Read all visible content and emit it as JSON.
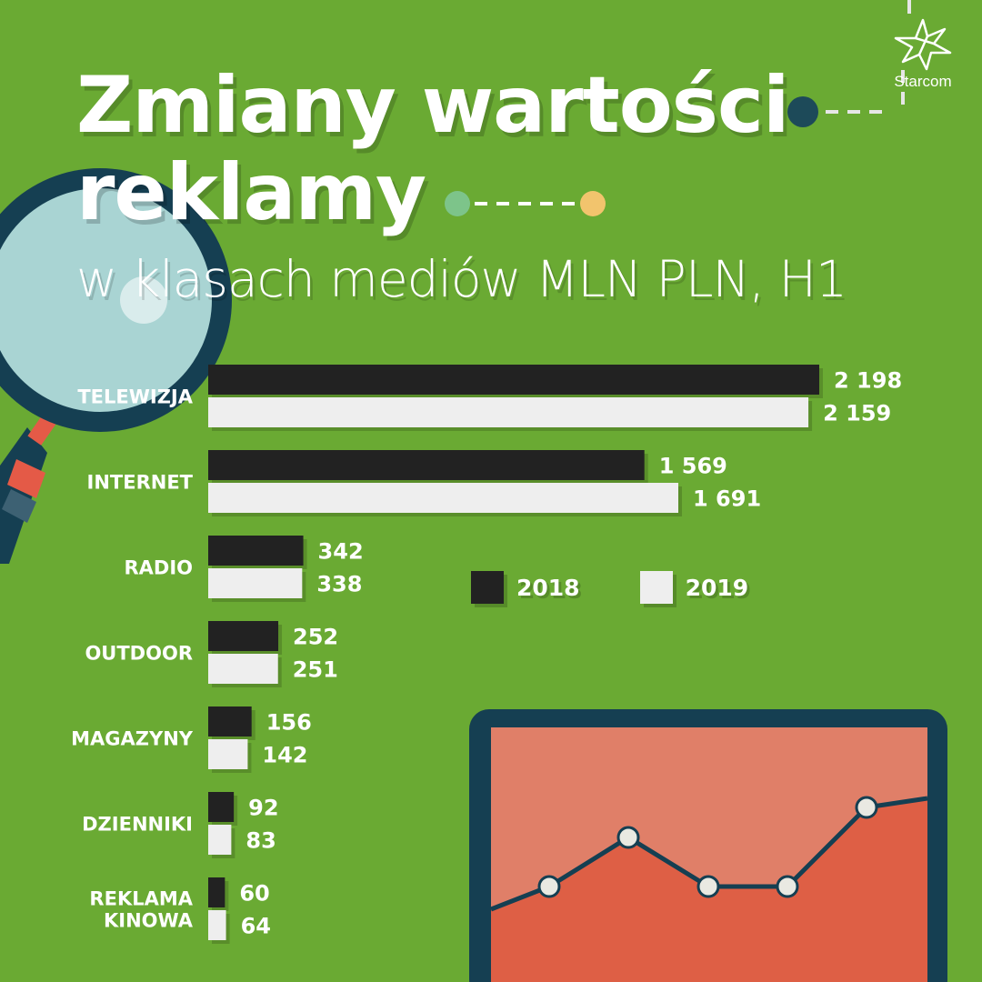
{
  "header": {
    "title": "Zmiany wartości\nreklamy",
    "subtitle": "w klasach mediów MLN PLN, H1",
    "brand": "Starcom"
  },
  "legend": {
    "items": [
      {
        "label": "2018",
        "color": "#222222"
      },
      {
        "label": "2019",
        "color": "#eeeeee"
      }
    ]
  },
  "colors": {
    "background": "#6aaa33",
    "bar_2018": "#222222",
    "bar_2019": "#eeeeee",
    "navy": "#153f52",
    "monitor_screen": "#e07f68",
    "monitor_area": "#de5f45",
    "magnifier_lens": "#a9d4d3",
    "handle_red": "#e45a47",
    "dot_green": "#7dc48a",
    "dot_yellow": "#f2c46d"
  },
  "decor_icons": [
    "magnifier-icon",
    "monitor-line-chart-icon",
    "starcom-star-icon"
  ],
  "chart_data": {
    "type": "bar",
    "orientation": "horizontal",
    "title": "Zmiany wartości reklamy",
    "subtitle": "w klasach mediów MLN PLN, H1",
    "categories": [
      "TELEWIZJA",
      "INTERNET",
      "RADIO",
      "OUTDOOR",
      "MAGAZYNY",
      "DZIENNIKI",
      "REKLAMA\nKINOWA"
    ],
    "series": [
      {
        "name": "2018",
        "values": [
          2198,
          1569,
          342,
          252,
          156,
          92,
          60
        ],
        "labels": [
          "2 198",
          "1 569",
          "342",
          "252",
          "156",
          "92",
          "60"
        ]
      },
      {
        "name": "2019",
        "values": [
          2159,
          1691,
          338,
          251,
          142,
          83,
          64
        ],
        "labels": [
          "2 159",
          "1 691",
          "338",
          "251",
          "142",
          "83",
          "64"
        ]
      }
    ],
    "xlim": [
      0,
      2198
    ],
    "grid": false,
    "legend_position": "center-right"
  }
}
